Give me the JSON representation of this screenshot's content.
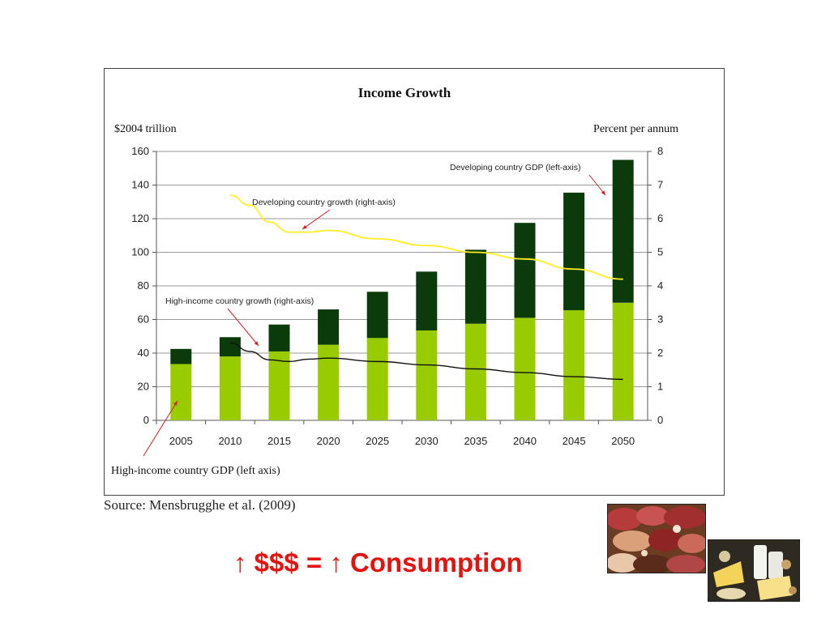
{
  "chart_data": {
    "type": "bar",
    "title": "Income Growth",
    "left_axis_label": "$2004 trillion",
    "right_axis_label": "Percent per annum",
    "categories": [
      "2005",
      "2010",
      "2015",
      "2020",
      "2025",
      "2030",
      "2035",
      "2040",
      "2045",
      "2050"
    ],
    "left_ylim": [
      0,
      160
    ],
    "left_ticks": [
      "0",
      "20",
      "40",
      "60",
      "80",
      "100",
      "120",
      "140",
      "160"
    ],
    "right_ylim": [
      0,
      8
    ],
    "right_ticks": [
      "0",
      "1",
      "2",
      "3",
      "4",
      "5",
      "6",
      "7",
      "8"
    ],
    "grid": true,
    "stacked": true,
    "series": [
      {
        "name": "High-income country GDP (left axis)",
        "axis": "left",
        "kind": "bar",
        "color": "#99cc00",
        "values": [
          33.5,
          38,
          41,
          45,
          49,
          53.5,
          57.5,
          61,
          65.5,
          70
        ]
      },
      {
        "name": "Developing country GDP (left-axis)",
        "axis": "left",
        "kind": "bar",
        "color": "#0b3a0b",
        "values": [
          9,
          11.5,
          16,
          21,
          27.5,
          35,
          44,
          56.5,
          70,
          85
        ]
      },
      {
        "name": "Developing country growth (right-axis)",
        "axis": "right",
        "kind": "line",
        "color": "#ffee22",
        "x": [
          2010,
          2012,
          2014,
          2016,
          2018,
          2020,
          2025,
          2030,
          2035,
          2040,
          2045,
          2050
        ],
        "values": [
          6.7,
          6.4,
          5.9,
          5.6,
          5.6,
          5.65,
          5.4,
          5.2,
          5.0,
          4.8,
          4.5,
          4.2
        ]
      },
      {
        "name": "High-income country growth (right-axis)",
        "axis": "right",
        "kind": "line",
        "color": "#111111",
        "x": [
          2010,
          2012,
          2014,
          2016,
          2018,
          2020,
          2025,
          2030,
          2035,
          2040,
          2045,
          2050
        ],
        "values": [
          2.3,
          2.05,
          1.8,
          1.75,
          1.82,
          1.85,
          1.75,
          1.65,
          1.53,
          1.42,
          1.3,
          1.22
        ]
      }
    ],
    "annotations": [
      "Developing country GDP (left-axis)",
      "Developing country growth (right-axis)",
      "High-income country growth (right-axis)",
      "High-income country GDP (left axis)"
    ]
  },
  "source": "Source: Mensbrugghe et al. (2009)",
  "caption": "↑ $$$ = ↑ Consumption",
  "images": {
    "meat": "meat-photo",
    "dairy": "dairy-photo"
  }
}
